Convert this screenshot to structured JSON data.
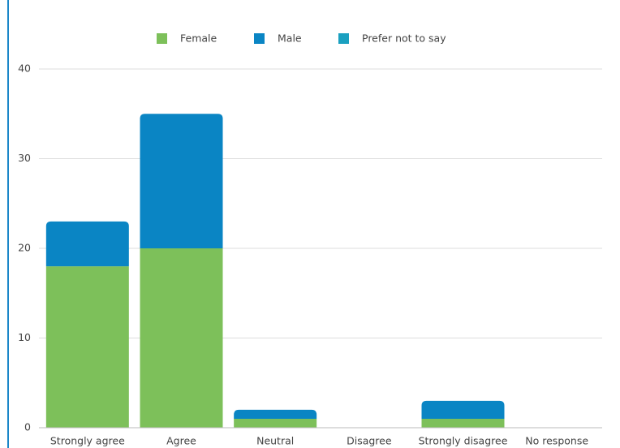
{
  "chart_data": {
    "type": "stacked_bar",
    "categories": [
      "Strongly agree",
      "Agree",
      "Neutral",
      "Disagree",
      "Strongly disagree",
      "No response"
    ],
    "series": [
      {
        "name": "Female",
        "color": "#7dc05a",
        "values": [
          18,
          20,
          1,
          0,
          1,
          0
        ]
      },
      {
        "name": "Male",
        "color": "#0a85c4",
        "values": [
          5,
          15,
          1,
          0,
          2,
          0
        ]
      },
      {
        "name": "Prefer not to say",
        "color": "#1aa0c0",
        "values": [
          0,
          0,
          0,
          0,
          0,
          0
        ]
      }
    ],
    "ylim": [
      0,
      40
    ],
    "yticks": [
      0,
      10,
      20,
      30,
      40
    ],
    "grid": true,
    "legend": "top"
  }
}
